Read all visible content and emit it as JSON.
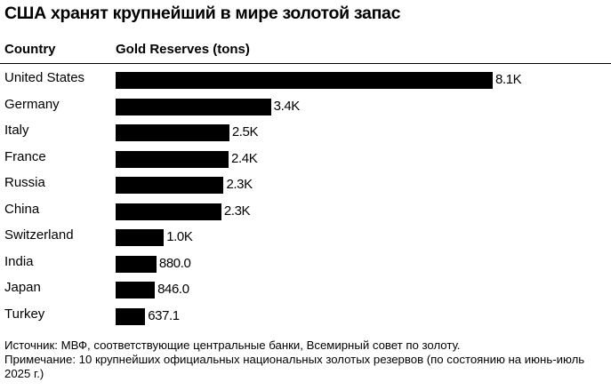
{
  "title": "США хранят крупнейший в мире золотой запас",
  "headers": {
    "country": "Country",
    "value": "Gold Reserves (tons)"
  },
  "chart_data": {
    "type": "bar",
    "orientation": "horizontal",
    "categories": [
      "United States",
      "Germany",
      "Italy",
      "France",
      "Russia",
      "China",
      "Switzerland",
      "India",
      "Japan",
      "Turkey"
    ],
    "values": [
      8133,
      3350,
      2452,
      2437,
      2330,
      2280,
      1040,
      880.0,
      846.0,
      637.1
    ],
    "labels": [
      "8.1K",
      "3.4K",
      "2.5K",
      "2.4K",
      "2.3K",
      "2.3K",
      "1.0K",
      "880.0",
      "846.0",
      "637.1"
    ],
    "title": "США хранят крупнейший в мире золотой запас",
    "xlabel": "Gold Reserves (tons)",
    "ylabel": "Country",
    "xlim": [
      0,
      8133
    ],
    "grid": false,
    "bar_color": "#000000"
  },
  "footer": {
    "source": "Источник: МВФ, соответствующие центральные банки, Всемирный совет по золоту.",
    "note": "Примечание: 10 крупнейших официальных национальных золотых резервов (по состоянию на июнь-июль 2025 г.)"
  }
}
